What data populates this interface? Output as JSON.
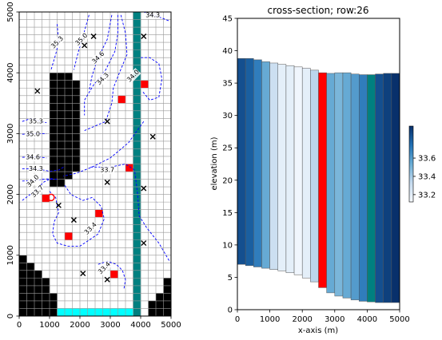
{
  "left_panel": {
    "type": "map",
    "x_ticks": [
      "0",
      "1000",
      "2000",
      "3000",
      "4000",
      "5000"
    ],
    "y_ticks": [
      "0",
      "1000",
      "2000",
      "3000",
      "4000",
      "5000"
    ],
    "grid": {
      "ncol": 20,
      "nrow": 40,
      "xlim": [
        0,
        5000
      ],
      "ylim": [
        0,
        5000
      ]
    },
    "contour_labels": [
      {
        "text": "34.3",
        "x": 4400,
        "y": 4950
      },
      {
        "text": "35.3",
        "x": 1250,
        "y": 4500
      },
      {
        "text": "35.0",
        "x": 2050,
        "y": 4550
      },
      {
        "text": "34.6",
        "x": 2600,
        "y": 4250
      },
      {
        "text": "34.3",
        "x": 2750,
        "y": 3900
      },
      {
        "text": "34.0",
        "x": 3750,
        "y": 3950
      },
      {
        "text": "35.3",
        "x": 550,
        "y": 3200
      },
      {
        "text": "35.0",
        "x": 450,
        "y": 2990
      },
      {
        "text": "34.6",
        "x": 450,
        "y": 2610
      },
      {
        "text": "34.3",
        "x": 550,
        "y": 2420
      },
      {
        "text": "34.0",
        "x": 450,
        "y": 2220
      },
      {
        "text": "33.7",
        "x": 600,
        "y": 2050
      },
      {
        "text": "33.7",
        "x": 2900,
        "y": 2400
      },
      {
        "text": "33.4",
        "x": 2350,
        "y": 1440
      },
      {
        "text": "33.4",
        "x": 2800,
        "y": 790
      }
    ],
    "colors": {
      "inactive": "#000000",
      "river": "#008080",
      "chd": "#00ffff",
      "well": "#ff0000",
      "contour": "#0000ff",
      "grid": "#999999"
    }
  },
  "chart_data": {
    "type": "bar",
    "title": "cross-section; row:26",
    "xlabel": "x-axis (m)",
    "ylabel": "elevation (m)",
    "xlim": [
      0,
      5000
    ],
    "ylim": [
      0,
      45
    ],
    "x_ticks": [
      "0",
      "1000",
      "2000",
      "3000",
      "4000",
      "5000"
    ],
    "y_ticks": [
      "0",
      "5",
      "10",
      "15",
      "20",
      "25",
      "30",
      "35",
      "40",
      "45"
    ],
    "cell_width": 250,
    "bottom": [
      7.0,
      6.8,
      6.6,
      6.4,
      6.2,
      6.0,
      5.7,
      5.4,
      4.9,
      4.3,
      3.4,
      2.6,
      2.1,
      1.8,
      1.5,
      1.3,
      1.2,
      1.1,
      1.1,
      1.1
    ],
    "top": [
      38.8,
      38.8,
      38.6,
      38.3,
      38.1,
      37.9,
      37.7,
      37.5,
      37.3,
      37.0,
      36.6,
      36.5,
      36.6,
      36.6,
      36.4,
      36.3,
      36.3,
      36.4,
      36.5,
      36.5
    ],
    "heads": [
      33.85,
      33.8,
      33.7,
      33.55,
      33.3,
      33.2,
      33.2,
      33.15,
      33.2,
      33.35,
      null,
      33.55,
      33.5,
      33.55,
      33.6,
      33.7,
      null,
      33.85,
      33.9,
      33.95
    ],
    "special_colors": {
      "10": "#ff0000",
      "16": "#008080"
    },
    "colorbar": {
      "ticks": [
        "33.2",
        "33.4",
        "33.6"
      ],
      "min": 33.12,
      "max": 33.95
    }
  }
}
